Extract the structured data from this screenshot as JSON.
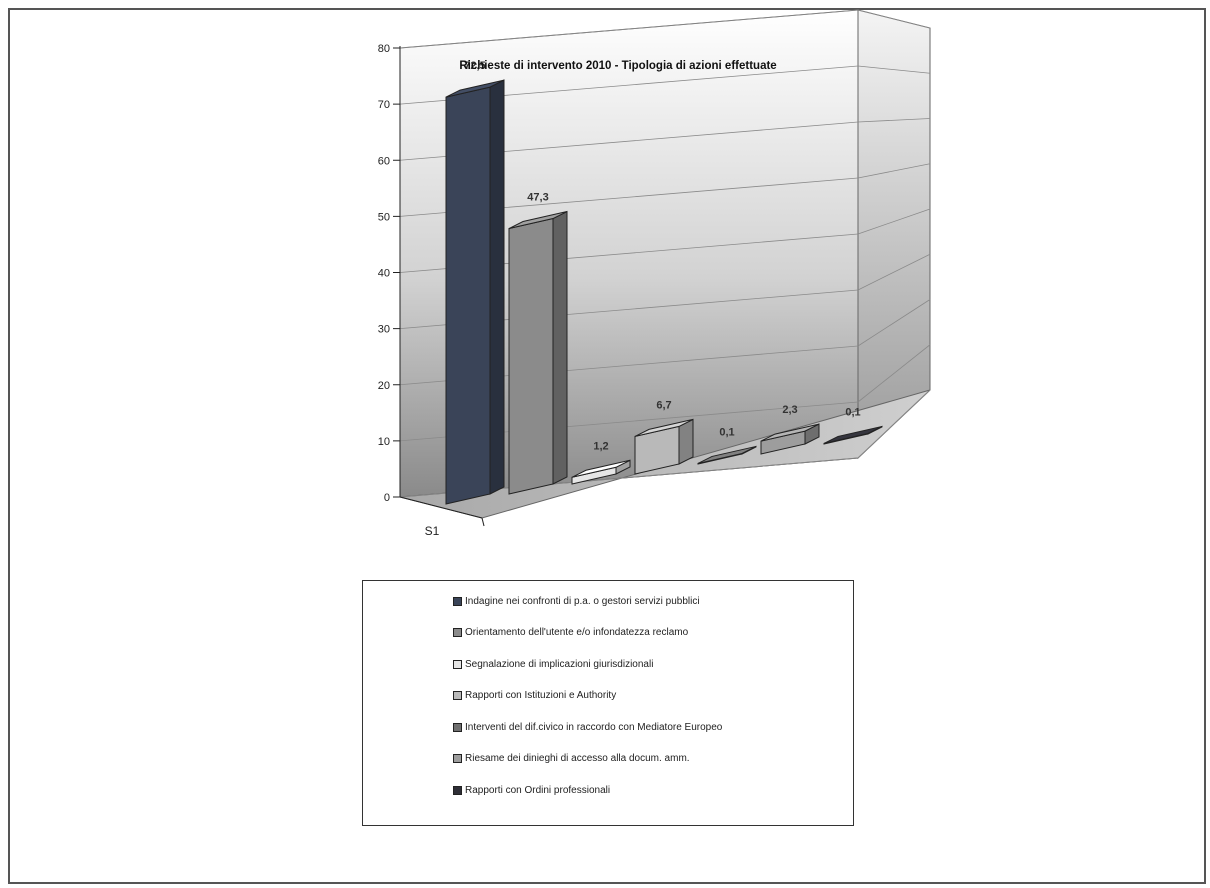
{
  "chart_data": {
    "type": "bar",
    "title": "Richieste di intervento 2010 - Tipologia di azioni effettuate",
    "categories": [
      "S1"
    ],
    "ylim": [
      0,
      80
    ],
    "yticks": [
      "0",
      "10",
      "20",
      "30",
      "40",
      "50",
      "60",
      "70",
      "80"
    ],
    "grid": true,
    "legend_position": "bottom",
    "series": [
      {
        "name": "Indagine nei confronti di p.a. o gestori servizi pubblici",
        "value": 72.5,
        "label": "72,5",
        "color": "#3a4458"
      },
      {
        "name": "Orientamento dell'utente e/o infondatezza reclamo",
        "value": 47.3,
        "label": "47,3",
        "color": "#8b8b8b"
      },
      {
        "name": "Segnalazione di implicazioni giurisdizionali",
        "value": 1.2,
        "label": "1,2",
        "color": "#e6e6e6"
      },
      {
        "name": "Rapporti con Istituzioni e Authority",
        "value": 6.7,
        "label": "6,7",
        "color": "#b9b9b9"
      },
      {
        "name": "Interventi del dif.civico in raccordo con Mediatore Europeo",
        "value": 0.1,
        "label": "0,1",
        "color": "#6f6f6f"
      },
      {
        "name": "Riesame dei dinieghi di accesso alla docum. amm.",
        "value": 2.3,
        "label": "2,3",
        "color": "#9d9d9d"
      },
      {
        "name": "Rapporti con Ordini professionali",
        "value": 0.1,
        "label": "0,1",
        "color": "#2e2e36"
      }
    ]
  }
}
